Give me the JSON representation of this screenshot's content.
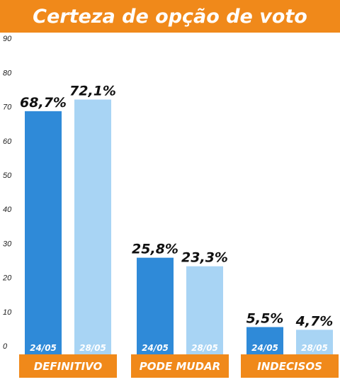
{
  "colors": {
    "accent": "#f0891a",
    "series_dark": "#2f8ad8",
    "series_light": "#a8d4f4",
    "text": "#111111",
    "white": "#ffffff"
  },
  "chart_data": {
    "type": "bar",
    "title": "Certeza de opção de voto",
    "categories": [
      "DEFINITIVO",
      "PODE MUDAR",
      "INDECISOS"
    ],
    "series": [
      {
        "name": "24/05",
        "values": [
          68.7,
          25.8,
          5.5
        ],
        "labels": [
          "68,7%",
          "25,8%",
          "5,5%"
        ],
        "color": "#2f8ad8"
      },
      {
        "name": "28/05",
        "values": [
          72.1,
          23.3,
          4.7
        ],
        "labels": [
          "72,1%",
          "23,3%",
          "4,7%"
        ],
        "color": "#a8d4f4"
      }
    ],
    "yticks": [
      0,
      10,
      20,
      30,
      40,
      50,
      60,
      70,
      80,
      90
    ],
    "ylim": [
      0,
      90
    ],
    "xlabel": "",
    "ylabel": "",
    "grid": false,
    "legend": "none"
  }
}
